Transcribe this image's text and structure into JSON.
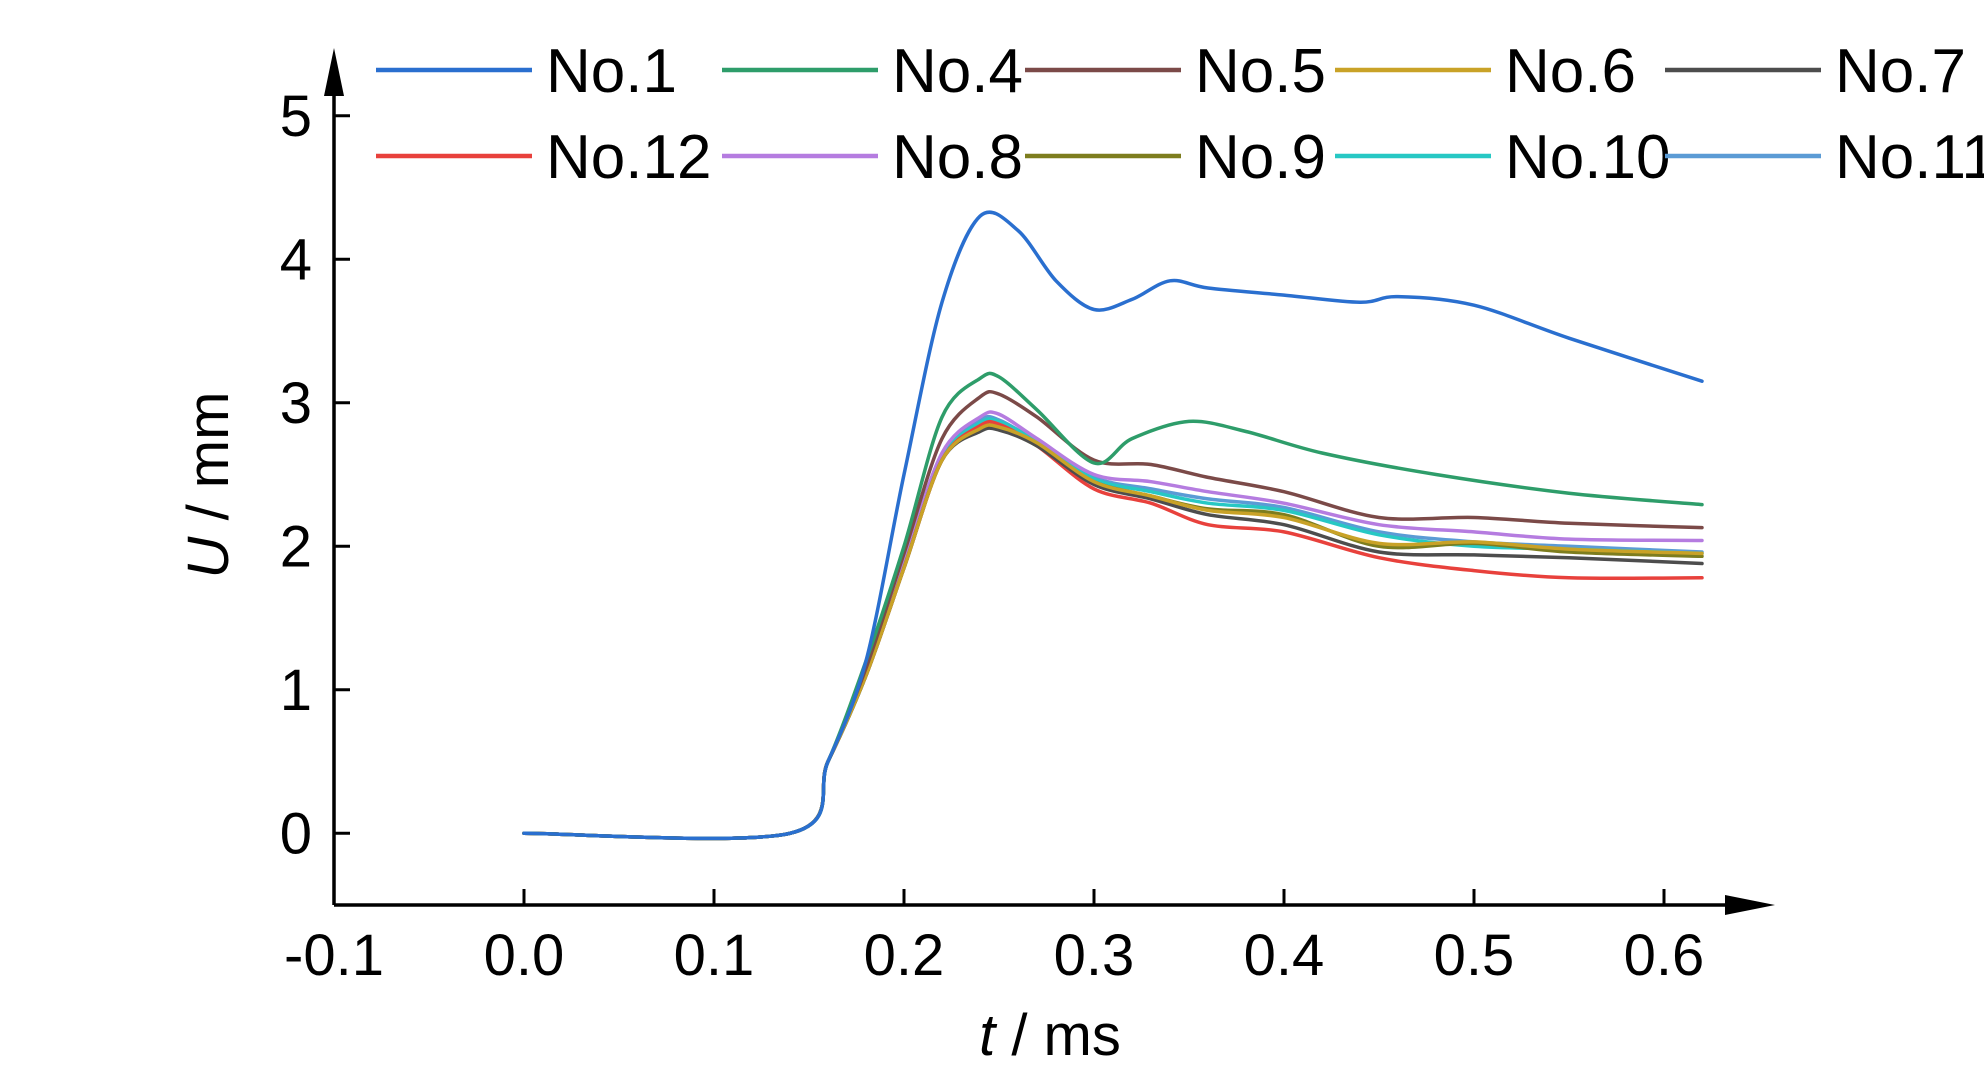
{
  "chart_data": {
    "type": "line",
    "xlabel_var": "t",
    "xlabel_unit": " / ms",
    "ylabel_var": "U",
    "ylabel_unit": " / mm",
    "xlim": [
      -0.1,
      0.62
    ],
    "ylim": [
      -0.5,
      5.5
    ],
    "xticks": [
      -0.1,
      0.0,
      0.1,
      0.2,
      0.3,
      0.4,
      0.5,
      0.6
    ],
    "xtick_labels": [
      "-0.1",
      "0.0",
      "0.1",
      "0.2",
      "0.3",
      "0.4",
      "0.5",
      "0.6"
    ],
    "yticks": [
      0,
      1,
      2,
      3,
      4,
      5
    ],
    "ytick_labels": [
      "0",
      "1",
      "2",
      "3",
      "4",
      "5"
    ],
    "grid": false,
    "legend_position": "top",
    "series": [
      {
        "name": "No.1",
        "color": "#2a6fcf",
        "x": [
          0.0,
          0.14,
          0.16,
          0.18,
          0.2,
          0.22,
          0.24,
          0.26,
          0.28,
          0.3,
          0.32,
          0.34,
          0.36,
          0.4,
          0.44,
          0.46,
          0.5,
          0.55,
          0.62
        ],
        "y": [
          0,
          0,
          0.5,
          1.2,
          2.5,
          3.7,
          4.3,
          4.2,
          3.85,
          3.65,
          3.72,
          3.85,
          3.8,
          3.75,
          3.7,
          3.74,
          3.68,
          3.45,
          3.15
        ]
      },
      {
        "name": "No.4",
        "color": "#2e9d6a",
        "x": [
          0.0,
          0.14,
          0.16,
          0.18,
          0.2,
          0.22,
          0.24,
          0.25,
          0.27,
          0.3,
          0.32,
          0.35,
          0.38,
          0.42,
          0.48,
          0.55,
          0.62
        ],
        "y": [
          0,
          0,
          0.5,
          1.2,
          2.0,
          2.9,
          3.17,
          3.18,
          2.95,
          2.58,
          2.75,
          2.87,
          2.8,
          2.65,
          2.5,
          2.37,
          2.29
        ]
      },
      {
        "name": "No.5",
        "color": "#7b4a48",
        "x": [
          0.0,
          0.14,
          0.16,
          0.18,
          0.2,
          0.22,
          0.24,
          0.25,
          0.27,
          0.3,
          0.33,
          0.36,
          0.4,
          0.45,
          0.5,
          0.55,
          0.62
        ],
        "y": [
          0,
          0,
          0.5,
          1.15,
          1.95,
          2.75,
          3.04,
          3.06,
          2.9,
          2.6,
          2.57,
          2.48,
          2.38,
          2.2,
          2.2,
          2.16,
          2.13
        ]
      },
      {
        "name": "No.6",
        "color": "#c9a227",
        "x": [
          0.0,
          0.14,
          0.16,
          0.18,
          0.2,
          0.22,
          0.24,
          0.25,
          0.27,
          0.3,
          0.33,
          0.36,
          0.4,
          0.45,
          0.5,
          0.55,
          0.62
        ],
        "y": [
          0,
          0,
          0.5,
          1.1,
          1.85,
          2.6,
          2.82,
          2.83,
          2.72,
          2.45,
          2.35,
          2.25,
          2.2,
          2.02,
          2.03,
          1.98,
          1.95
        ]
      },
      {
        "name": "No.7",
        "color": "#4d4d4d",
        "x": [
          0.0,
          0.14,
          0.16,
          0.18,
          0.2,
          0.22,
          0.24,
          0.25,
          0.27,
          0.3,
          0.33,
          0.36,
          0.4,
          0.45,
          0.5,
          0.55,
          0.62
        ],
        "y": [
          0,
          0,
          0.5,
          1.1,
          1.85,
          2.6,
          2.8,
          2.81,
          2.7,
          2.43,
          2.33,
          2.22,
          2.15,
          1.96,
          1.94,
          1.92,
          1.88
        ]
      },
      {
        "name": "No.12",
        "color": "#e8413c",
        "x": [
          0.0,
          0.14,
          0.16,
          0.18,
          0.2,
          0.22,
          0.24,
          0.25,
          0.27,
          0.3,
          0.33,
          0.36,
          0.4,
          0.45,
          0.5,
          0.55,
          0.62
        ],
        "y": [
          0,
          0,
          0.5,
          1.1,
          1.85,
          2.6,
          2.84,
          2.85,
          2.7,
          2.4,
          2.3,
          2.15,
          2.1,
          1.92,
          1.83,
          1.78,
          1.78
        ]
      },
      {
        "name": "No.8",
        "color": "#b57ce0",
        "x": [
          0.0,
          0.14,
          0.16,
          0.18,
          0.2,
          0.22,
          0.24,
          0.25,
          0.27,
          0.3,
          0.33,
          0.36,
          0.4,
          0.45,
          0.5,
          0.55,
          0.62
        ],
        "y": [
          0,
          0,
          0.5,
          1.12,
          1.9,
          2.65,
          2.9,
          2.92,
          2.75,
          2.5,
          2.45,
          2.38,
          2.3,
          2.15,
          2.1,
          2.05,
          2.04
        ]
      },
      {
        "name": "No.9",
        "color": "#7d7d1e",
        "x": [
          0.0,
          0.14,
          0.16,
          0.18,
          0.2,
          0.22,
          0.24,
          0.25,
          0.27,
          0.3,
          0.33,
          0.36,
          0.4,
          0.45,
          0.5,
          0.55,
          0.62
        ],
        "y": [
          0,
          0,
          0.5,
          1.1,
          1.85,
          2.6,
          2.82,
          2.82,
          2.7,
          2.45,
          2.35,
          2.26,
          2.22,
          2.0,
          2.02,
          1.96,
          1.93
        ]
      },
      {
        "name": "No.10",
        "color": "#27c8c4",
        "x": [
          0.0,
          0.14,
          0.16,
          0.18,
          0.2,
          0.22,
          0.24,
          0.25,
          0.27,
          0.3,
          0.33,
          0.36,
          0.4,
          0.45,
          0.5,
          0.55,
          0.62
        ],
        "y": [
          0,
          0,
          0.5,
          1.1,
          1.88,
          2.62,
          2.86,
          2.87,
          2.73,
          2.47,
          2.38,
          2.3,
          2.25,
          2.08,
          2.0,
          1.98,
          1.95
        ]
      },
      {
        "name": "No.11",
        "color": "#5b9bd5",
        "x": [
          0.0,
          0.14,
          0.16,
          0.18,
          0.2,
          0.22,
          0.24,
          0.25,
          0.27,
          0.3,
          0.33,
          0.36,
          0.4,
          0.45,
          0.5,
          0.55,
          0.62
        ],
        "y": [
          0,
          0,
          0.5,
          1.1,
          1.88,
          2.64,
          2.88,
          2.88,
          2.73,
          2.48,
          2.4,
          2.33,
          2.27,
          2.1,
          2.03,
          2.0,
          1.96
        ]
      }
    ]
  }
}
